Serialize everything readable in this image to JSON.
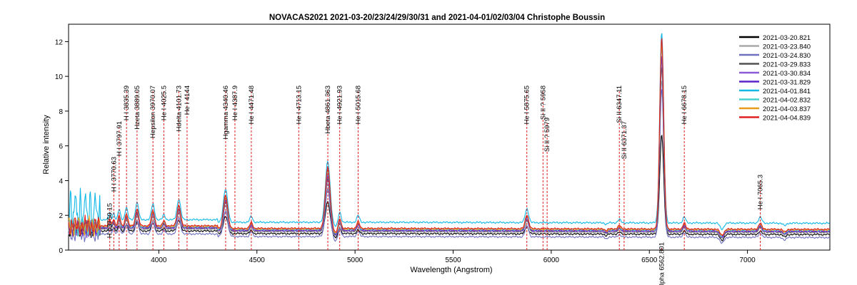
{
  "chart_data": {
    "type": "line",
    "title": "NOVACAS2021   2021-03-20/23/24/29/30/31 and 2021-04-01/02/03/04   Christophe Boussin",
    "xlabel": "Wavelength (Angstrom)",
    "ylabel": "Relative intensity",
    "xlim": [
      3540,
      7420
    ],
    "ylim": [
      0,
      13
    ],
    "xticks": [
      4000,
      4500,
      5000,
      5500,
      6000,
      6500,
      7000
    ],
    "yticks": [
      0,
      2,
      4,
      6,
      8,
      10,
      12
    ],
    "grid": false,
    "legend_position": "top-right",
    "lines": [
      {
        "label": "H I 3750.15",
        "x": 3750.15
      },
      {
        "label": "H I 3770.63",
        "x": 3770.63
      },
      {
        "label": "H I 3797.91",
        "x": 3797.91
      },
      {
        "label": "H I 3835.39",
        "x": 3835.39
      },
      {
        "label": "Hzeta 3889.05",
        "x": 3889.05
      },
      {
        "label": "Hepsilon 3970.07",
        "x": 3970.07
      },
      {
        "label": "He I 4025.5",
        "x": 4025.5
      },
      {
        "label": "Hdelta 4101.73",
        "x": 4101.73
      },
      {
        "label": "He I 4144",
        "x": 4144
      },
      {
        "label": "Hgamma 4340.46",
        "x": 4340.46
      },
      {
        "label": "He I 4387.9",
        "x": 4387.9
      },
      {
        "label": "He I 4471.48",
        "x": 4471.48
      },
      {
        "label": "He I 4713.15",
        "x": 4713.15
      },
      {
        "label": "Hbeta 4861.363",
        "x": 4861.363
      },
      {
        "label": "He I 4921.93",
        "x": 4921.93
      },
      {
        "label": "He I 5015.68",
        "x": 5015.68
      },
      {
        "label": "He I 5875.65",
        "x": 5875.65
      },
      {
        "label": "Si II ? 5958",
        "x": 5958
      },
      {
        "label": "Si II ? 5979",
        "x": 5979
      },
      {
        "label": "Si II 6347.11",
        "x": 6347.11
      },
      {
        "label": "Si II 6371.37",
        "x": 6371.37
      },
      {
        "label": "Halpha 6562.801",
        "x": 6562.801
      },
      {
        "label": "He I 6678.15",
        "x": 6678.15
      },
      {
        "label": "He I 7065.3",
        "x": 7065.3
      }
    ],
    "series": [
      {
        "name": "2021-03-20.821",
        "color": "#000000",
        "base": 0.95,
        "scale": 0.52
      },
      {
        "name": "2021-03-23.840",
        "color": "#a9a9a9",
        "base": 1.05,
        "scale": 0.8
      },
      {
        "name": "2021-03-24.830",
        "color": "#7070c0",
        "base": 0.78,
        "scale": 0.78
      },
      {
        "name": "2021-03-29.833",
        "color": "#505050",
        "base": 1.1,
        "scale": 0.86
      },
      {
        "name": "2021-03-30.834",
        "color": "#8a5ad8",
        "base": 1.12,
        "scale": 0.9
      },
      {
        "name": "2021-03-31.829",
        "color": "#5a22c8",
        "base": 1.15,
        "scale": 0.92
      },
      {
        "name": "2021-04-01.841",
        "color": "#12b8e6",
        "base": 1.6,
        "scale": 1.0
      },
      {
        "name": "2021-04-02.832",
        "color": "#48d0d0",
        "base": 1.2,
        "scale": 0.96
      },
      {
        "name": "2021-04-03.837",
        "color": "#e89a18",
        "base": 1.22,
        "scale": 0.98
      },
      {
        "name": "2021-04-04.839",
        "color": "#e02020",
        "base": 1.25,
        "scale": 1.0
      }
    ],
    "emission_peaks": [
      {
        "x": 3750,
        "h": 0.4,
        "w": 5
      },
      {
        "x": 3770,
        "h": 0.4,
        "w": 5
      },
      {
        "x": 3798,
        "h": 0.6,
        "w": 6
      },
      {
        "x": 3835,
        "h": 0.7,
        "w": 7
      },
      {
        "x": 3889,
        "h": 1.0,
        "w": 8
      },
      {
        "x": 3970,
        "h": 0.9,
        "w": 8
      },
      {
        "x": 4026,
        "h": 0.3,
        "w": 6
      },
      {
        "x": 4102,
        "h": 1.2,
        "w": 9
      },
      {
        "x": 4340,
        "h": 1.9,
        "w": 11
      },
      {
        "x": 4471,
        "h": 0.35,
        "w": 7
      },
      {
        "x": 4861,
        "h": 3.5,
        "w": 12
      },
      {
        "x": 4922,
        "h": 0.6,
        "w": 7
      },
      {
        "x": 5016,
        "h": 0.4,
        "w": 7
      },
      {
        "x": 5876,
        "h": 0.8,
        "w": 9
      },
      {
        "x": 6347,
        "h": 0.2,
        "w": 7
      },
      {
        "x": 6563,
        "h": 11.0,
        "w": 10
      },
      {
        "x": 6678,
        "h": 0.35,
        "w": 7
      },
      {
        "x": 7065,
        "h": 0.35,
        "w": 8
      }
    ]
  }
}
